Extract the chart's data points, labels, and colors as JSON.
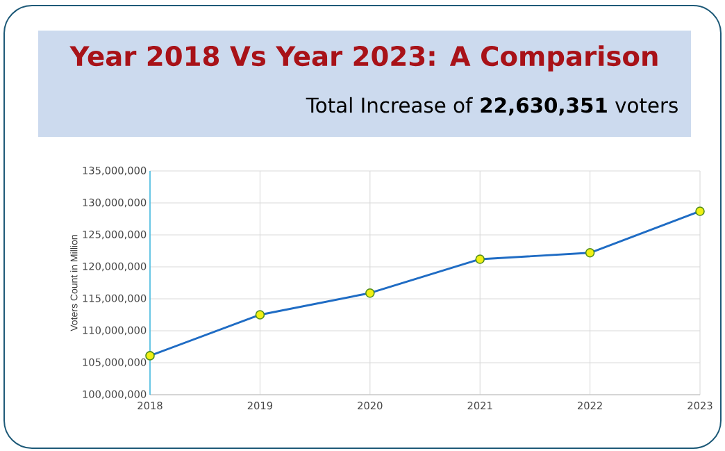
{
  "chart_data": {
    "type": "line",
    "title": "Year 2018 Vs Year 2023: A Comparison",
    "subtitle": "Total Increase of **22,630,351** voters",
    "ylabel": "Voters Count in Million",
    "categories": [
      "2018",
      "2019",
      "2020",
      "2021",
      "2022",
      "2023"
    ],
    "series": [
      {
        "color": "#1f6cc4",
        "values": [
          106100000,
          112500000,
          115900000,
          121200000,
          122200000,
          128700000
        ]
      }
    ],
    "ylim": [
      100000000,
      135000000
    ],
    "yticks": [
      {
        "value": 100000000,
        "label": "100,000,000"
      },
      {
        "value": 105000000,
        "label": "105,000,000"
      },
      {
        "value": 110000000,
        "label": "110,000,000"
      },
      {
        "value": 115000000,
        "label": "115,000,000"
      },
      {
        "value": 120000000,
        "label": "120,000,000"
      },
      {
        "value": 125000000,
        "label": "125,000,000"
      },
      {
        "value": 130000000,
        "label": "130,000,000"
      },
      {
        "value": 135000000,
        "label": "135,000,000"
      }
    ],
    "grid": true,
    "marker": "circle",
    "line_style": "solid"
  }
}
